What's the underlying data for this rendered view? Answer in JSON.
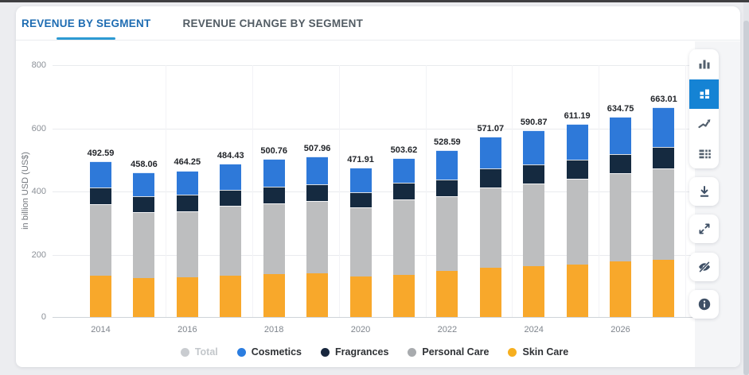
{
  "tabs": [
    {
      "label": "REVENUE BY SEGMENT",
      "active": true
    },
    {
      "label": "REVENUE CHANGE BY SEGMENT",
      "active": false
    }
  ],
  "colors": {
    "tab_active_text": "#1e6cb2",
    "tab_underline": "#2d9ad3",
    "active_tool_background": "#1583d4",
    "icon": "#53606e"
  },
  "sidebar": {
    "chart_type_buttons": [
      {
        "icon": "bar-chart-icon",
        "active": false
      },
      {
        "icon": "stacked-bar-chart-icon",
        "active": true
      },
      {
        "icon": "line-chart-icon",
        "active": false
      },
      {
        "icon": "table-icon",
        "active": false
      }
    ],
    "action_buttons": [
      {
        "icon": "download-icon"
      },
      {
        "icon": "fullscreen-icon"
      },
      {
        "icon": "hide-eye-icon"
      },
      {
        "icon": "info-icon"
      }
    ]
  },
  "chart_data": {
    "type": "bar",
    "stacked": true,
    "title": "",
    "ylabel": "in billion USD (US$)",
    "xlabel": "",
    "ylim": [
      0,
      800
    ],
    "yticks": [
      0,
      200,
      400,
      600,
      800
    ],
    "grid": true,
    "legend_position": "bottom",
    "x": [
      2014,
      2015,
      2016,
      2017,
      2018,
      2019,
      2020,
      2021,
      2022,
      2023,
      2024,
      2025,
      2026,
      2027
    ],
    "x_tick_labels": [
      "2014",
      "2016",
      "2018",
      "2020",
      "2022",
      "2024",
      "2026"
    ],
    "totals": [
      "492.59",
      "458.06",
      "464.25",
      "484.43",
      "500.76",
      "507.96",
      "471.91",
      "503.62",
      "528.59",
      "571.07",
      "590.87",
      "611.19",
      "634.75",
      "663.01"
    ],
    "series": [
      {
        "name": "Skin Care",
        "color": "#f8a82b",
        "values": [
          130.0,
          124.0,
          125.5,
          130.0,
          135.5,
          137.5,
          127.5,
          134.0,
          145.0,
          157.0,
          160.0,
          167.0,
          176.0,
          181.0
        ]
      },
      {
        "name": "Personal Care",
        "color": "#bdbebf",
        "values": [
          226.5,
          209.0,
          210.0,
          222.0,
          225.0,
          229.0,
          220.5,
          237.5,
          238.0,
          254.0,
          263.5,
          271.5,
          278.5,
          290.0
        ]
      },
      {
        "name": "Fragrances",
        "color": "#152a40",
        "values": [
          53.0,
          50.5,
          52.0,
          50.5,
          53.0,
          53.0,
          46.0,
          54.5,
          53.0,
          59.0,
          60.5,
          60.5,
          61.0,
          67.0
        ]
      },
      {
        "name": "Cosmetics",
        "color": "#2e79d9",
        "values": [
          83.09,
          74.56,
          76.75,
          81.93,
          87.26,
          88.46,
          77.91,
          77.62,
          92.59,
          101.07,
          106.87,
          112.19,
          119.25,
          125.01
        ]
      }
    ],
    "legend": [
      {
        "label": "Total",
        "color": "#c9ccd0",
        "disabled": true
      },
      {
        "label": "Cosmetics",
        "color": "#2b7de0",
        "disabled": false
      },
      {
        "label": "Fragrances",
        "color": "#18273e",
        "disabled": false
      },
      {
        "label": "Personal Care",
        "color": "#a8abae",
        "disabled": false
      },
      {
        "label": "Skin Care",
        "color": "#f6af1f",
        "disabled": false
      }
    ]
  }
}
